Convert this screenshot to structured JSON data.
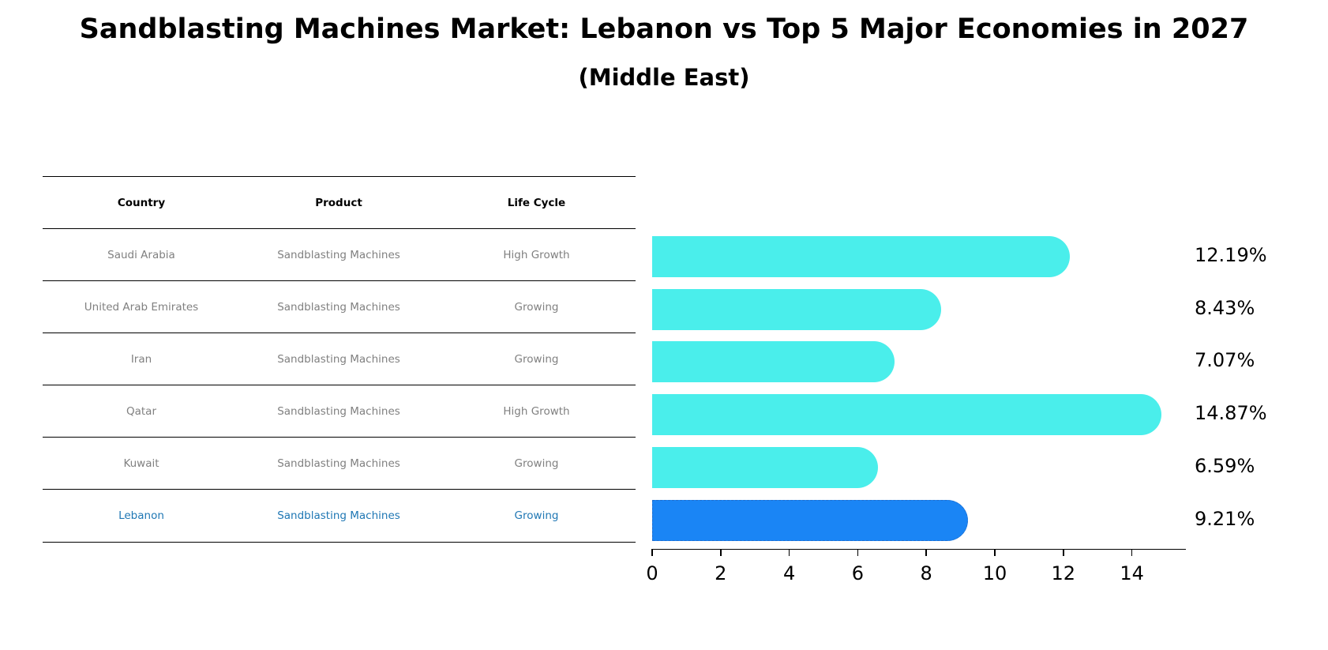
{
  "title": "Sandblasting Machines Market: Lebanon vs Top 5 Major Economies in 2027",
  "subtitle": "(Middle East)",
  "table": {
    "headers": [
      "Country",
      "Product",
      "Life Cycle"
    ],
    "rows": [
      [
        "Saudi Arabia",
        "Sandblasting Machines",
        "High Growth"
      ],
      [
        "United Arab Emirates",
        "Sandblasting Machines",
        "Growing"
      ],
      [
        "Iran",
        "Sandblasting Machines",
        "Growing"
      ],
      [
        "Qatar",
        "Sandblasting Machines",
        "High Growth"
      ],
      [
        "Kuwait",
        "Sandblasting Machines",
        "Growing"
      ],
      [
        "Lebanon",
        "Sandblasting Machines",
        "Growing"
      ]
    ],
    "highlight_row": 5,
    "highlight_color": "#1f77b4"
  },
  "chart_data": {
    "type": "bar",
    "orientation": "horizontal",
    "title": "Sandblasting Machines Market: Lebanon vs Top 5 Major Economies in 2027",
    "subtitle": "(Middle East)",
    "categories": [
      "Saudi Arabia",
      "United Arab Emirates",
      "Iran",
      "Qatar",
      "Kuwait",
      "Lebanon"
    ],
    "values": [
      12.19,
      8.43,
      7.07,
      14.87,
      6.59,
      9.21
    ],
    "value_labels": [
      "12.19%",
      "8.43%",
      "7.07%",
      "14.87%",
      "6.59%",
      "9.21%"
    ],
    "colors": [
      "#4aeeeb",
      "#4aeeeb",
      "#4aeeeb",
      "#4aeeeb",
      "#4aeeeb",
      "#1a85f5"
    ],
    "highlight": "Lebanon",
    "xlabel": "",
    "ylabel": "",
    "xticks": [
      "0",
      "2",
      "4",
      "6",
      "8",
      "10",
      "12",
      "14"
    ],
    "xlim": [
      0,
      15.6
    ],
    "grid": false,
    "legend": null
  }
}
